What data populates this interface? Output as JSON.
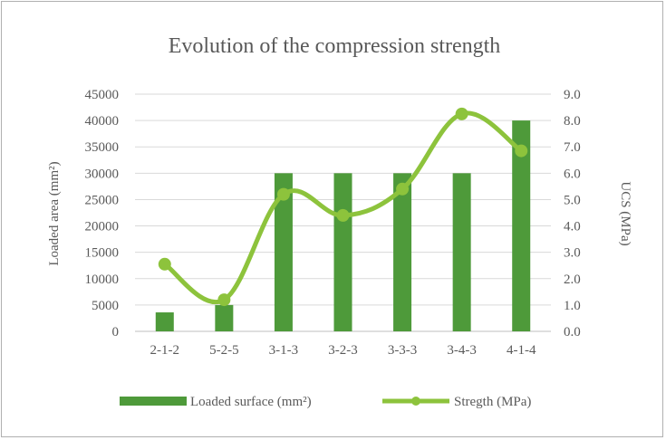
{
  "chart_data": {
    "type": "bar",
    "title": "Evolution  of the  compression strength",
    "categories": [
      "2-1-2",
      "5-2-5",
      "3-1-3",
      "3-2-3",
      "3-3-3",
      "3-4-3",
      "4-1-4"
    ],
    "series": [
      {
        "name": "Loaded surface (mm²)",
        "type": "bar",
        "axis": "left",
        "color": "#4e9a3a",
        "values": [
          3600,
          5000,
          30000,
          30000,
          30000,
          30000,
          40000
        ]
      },
      {
        "name": "Stregth (MPa)",
        "type": "line",
        "axis": "right",
        "color": "#8dc33c",
        "values": [
          2.55,
          1.2,
          5.2,
          4.4,
          5.4,
          8.25,
          6.85
        ]
      }
    ],
    "ylabel": "Loaded area (mm²)",
    "y2label": "UCS (MPa)",
    "ylim": [
      0,
      45000
    ],
    "y2lim": [
      0,
      9
    ],
    "yticks": [
      "0",
      "5000",
      "10000",
      "15000",
      "20000",
      "25000",
      "30000",
      "35000",
      "40000",
      "45000"
    ],
    "y2ticks": [
      "0.0",
      "1.0",
      "2.0",
      "3.0",
      "4.0",
      "5.0",
      "6.0",
      "7.0",
      "8.0",
      "9.0"
    ],
    "grid": true,
    "legend_position": "bottom"
  }
}
